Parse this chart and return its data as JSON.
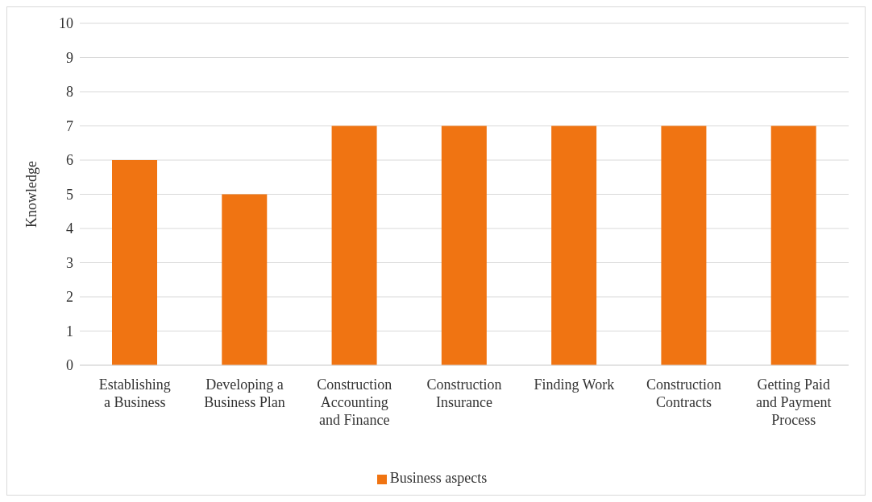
{
  "chart_data": {
    "type": "bar",
    "ylabel": "Knowledge",
    "categories": [
      "Establishing a Business",
      "Developing a Business Plan",
      "Construction Accounting and Finance",
      "Construction Insurance",
      "Finding Work",
      "Construction Contracts",
      "Getting Paid and Payment Process"
    ],
    "series": [
      {
        "name": "Business aspects",
        "color": "#f07412",
        "values": [
          6,
          5,
          7,
          7,
          7,
          7,
          7
        ]
      }
    ],
    "ylim": [
      0,
      10
    ],
    "yticks": [
      0,
      1,
      2,
      3,
      4,
      5,
      6,
      7,
      8,
      9,
      10
    ],
    "grid": "y",
    "legend": "bottom"
  }
}
